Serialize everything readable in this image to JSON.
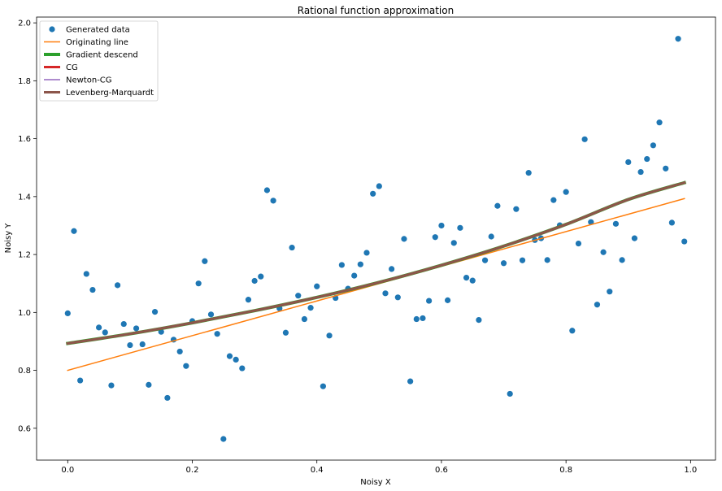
{
  "chart_data": {
    "type": "scatter",
    "title": "Rational function approximation",
    "xlabel": "Noisy X",
    "ylabel": "Noisy Y",
    "xlim": [
      -0.05,
      1.04
    ],
    "ylim": [
      0.49,
      2.02
    ],
    "xticks": [
      0.0,
      0.2,
      0.4,
      0.6,
      0.8,
      1.0
    ],
    "xtick_labels": [
      "0.0",
      "0.2",
      "0.4",
      "0.6",
      "0.8",
      "1.0"
    ],
    "yticks": [
      0.6,
      0.8,
      1.0,
      1.2,
      1.4,
      1.6,
      1.8,
      2.0
    ],
    "ytick_labels": [
      "0.6",
      "0.8",
      "1.0",
      "1.2",
      "1.4",
      "1.6",
      "1.8",
      "2.0"
    ],
    "grid": false,
    "legend_position": "top-left",
    "scatter": {
      "name": "Generated data",
      "color": "#1f77b4",
      "x": [
        0.0,
        0.01,
        0.02,
        0.03,
        0.04,
        0.05,
        0.06,
        0.07,
        0.08,
        0.09,
        0.1,
        0.11,
        0.12,
        0.13,
        0.14,
        0.15,
        0.16,
        0.17,
        0.18,
        0.19,
        0.2,
        0.21,
        0.22,
        0.23,
        0.24,
        0.25,
        0.26,
        0.27,
        0.28,
        0.29,
        0.3,
        0.31,
        0.32,
        0.33,
        0.34,
        0.35,
        0.36,
        0.37,
        0.38,
        0.39,
        0.4,
        0.41,
        0.42,
        0.43,
        0.44,
        0.45,
        0.46,
        0.47,
        0.48,
        0.49,
        0.5,
        0.51,
        0.52,
        0.53,
        0.54,
        0.55,
        0.56,
        0.57,
        0.58,
        0.59,
        0.6,
        0.61,
        0.62,
        0.63,
        0.64,
        0.65,
        0.66,
        0.67,
        0.68,
        0.69,
        0.7,
        0.71,
        0.72,
        0.73,
        0.74,
        0.75,
        0.76,
        0.77,
        0.78,
        0.79,
        0.8,
        0.81,
        0.82,
        0.83,
        0.84,
        0.85,
        0.86,
        0.87,
        0.88,
        0.89,
        0.9,
        0.91,
        0.92,
        0.93,
        0.94,
        0.95,
        0.96,
        0.97,
        0.98,
        0.99
      ],
      "y": [
        0.997,
        1.281,
        0.765,
        1.133,
        1.078,
        0.948,
        0.931,
        0.748,
        1.094,
        0.96,
        0.887,
        0.945,
        0.89,
        0.75,
        1.002,
        0.933,
        0.705,
        0.906,
        0.865,
        0.815,
        0.97,
        1.1,
        1.177,
        0.993,
        0.926,
        0.563,
        0.849,
        0.837,
        0.807,
        1.044,
        1.109,
        1.124,
        1.422,
        1.386,
        1.014,
        0.93,
        1.224,
        1.058,
        0.977,
        1.016,
        1.09,
        0.745,
        0.92,
        1.05,
        1.164,
        1.082,
        1.127,
        1.166,
        1.206,
        1.41,
        1.436,
        1.066,
        1.15,
        1.052,
        1.254,
        0.762,
        0.977,
        0.98,
        1.04,
        1.26,
        1.3,
        1.042,
        1.24,
        1.292,
        1.12,
        1.11,
        0.974,
        1.18,
        1.262,
        1.368,
        1.17,
        0.719,
        1.357,
        1.18,
        1.482,
        1.25,
        1.256,
        1.181,
        1.388,
        1.301,
        1.416,
        0.937,
        1.238,
        1.598,
        1.312,
        1.027,
        1.208,
        1.072,
        1.306,
        1.181,
        1.519,
        1.256,
        1.485,
        1.53,
        1.577,
        1.656,
        1.497,
        1.31,
        1.945,
        1.245
      ]
    },
    "series": [
      {
        "name": "Originating line",
        "color": "#ff7f0e",
        "width": 1.5,
        "x": [
          0.0,
          0.99
        ],
        "y": [
          0.8,
          1.393
        ]
      },
      {
        "name": "Gradient descend",
        "color": "#2ca02c",
        "width": 4,
        "x": [
          0.0,
          0.1,
          0.2,
          0.3,
          0.4,
          0.5,
          0.6,
          0.7,
          0.8,
          0.9,
          0.99
        ],
        "y": [
          0.893,
          0.926,
          0.964,
          1.006,
          1.052,
          1.104,
          1.163,
          1.229,
          1.304,
          1.39,
          1.448
        ]
      },
      {
        "name": "CG",
        "color": "#d62728",
        "width": 3,
        "x": [
          0.0,
          0.1,
          0.2,
          0.3,
          0.4,
          0.5,
          0.6,
          0.7,
          0.8,
          0.9,
          0.99
        ],
        "y": [
          0.893,
          0.926,
          0.964,
          1.006,
          1.052,
          1.104,
          1.163,
          1.229,
          1.304,
          1.39,
          1.448
        ]
      },
      {
        "name": "Newton-CG",
        "color": "#9467bd",
        "width": 1.5,
        "x": [
          0.0,
          0.1,
          0.2,
          0.3,
          0.4,
          0.5,
          0.6,
          0.7,
          0.8,
          0.9,
          0.99
        ],
        "y": [
          0.893,
          0.926,
          0.964,
          1.006,
          1.052,
          1.104,
          1.163,
          1.229,
          1.304,
          1.39,
          1.448
        ]
      },
      {
        "name": "Levenberg-Marquardt",
        "color": "#8c564b",
        "width": 3,
        "x": [
          0.0,
          0.1,
          0.2,
          0.3,
          0.4,
          0.5,
          0.6,
          0.7,
          0.8,
          0.9,
          0.99
        ],
        "y": [
          0.893,
          0.926,
          0.964,
          1.006,
          1.052,
          1.104,
          1.163,
          1.229,
          1.304,
          1.39,
          1.448
        ]
      }
    ]
  }
}
